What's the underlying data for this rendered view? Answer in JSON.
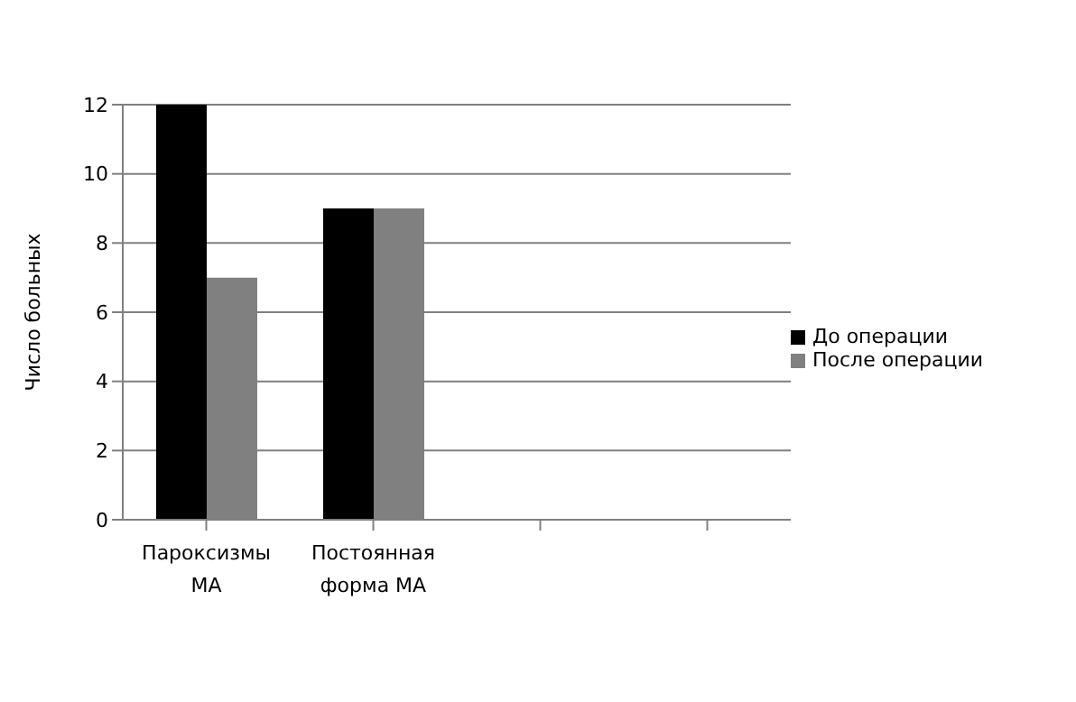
{
  "chart_data": {
    "type": "bar",
    "ylabel": "Число больных",
    "categories": [
      "Пароксизмы МА",
      "Постоянная форма МА",
      null,
      null
    ],
    "series": [
      {
        "name": "До операции",
        "color": "#000000",
        "values": [
          12,
          9,
          null,
          null
        ]
      },
      {
        "name": "После операции",
        "color": "#808080",
        "values": [
          7,
          9,
          null,
          null
        ]
      }
    ],
    "ylim": [
      0,
      12
    ],
    "yticks": [
      0,
      2,
      4,
      6,
      8,
      10,
      12
    ],
    "grid": "y",
    "legend": "right"
  }
}
